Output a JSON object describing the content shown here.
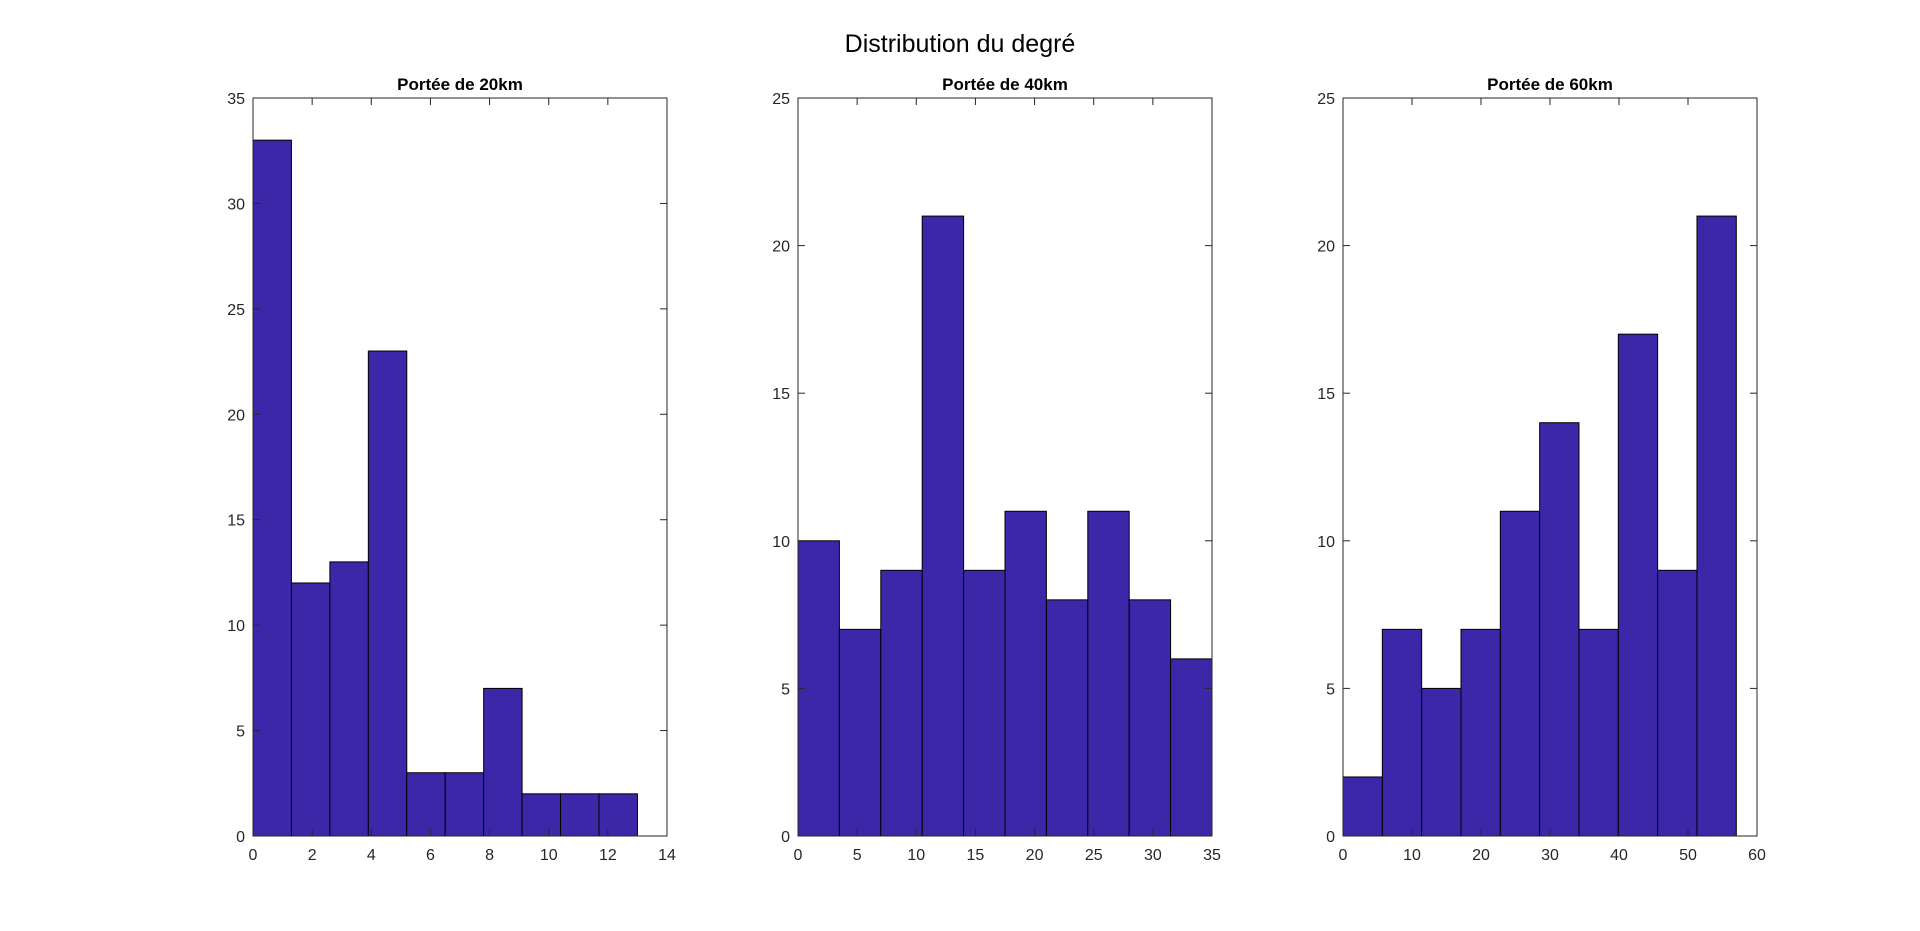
{
  "figure": {
    "title": "Distribution du degré"
  },
  "chart_data": [
    {
      "type": "bar",
      "title": "Portée de 20km",
      "xlabel": "",
      "ylabel": "",
      "bin_edges": [
        0,
        1.3,
        2.6,
        3.9,
        5.2,
        6.5,
        7.8,
        9.1,
        10.4,
        11.7,
        13.0
      ],
      "values": [
        33,
        12,
        13,
        23,
        3,
        3,
        7,
        2,
        2,
        2
      ],
      "xlim": [
        0,
        14
      ],
      "ylim": [
        0,
        35
      ],
      "xticks": [
        0,
        2,
        4,
        6,
        8,
        10,
        12,
        14
      ],
      "yticks": [
        0,
        5,
        10,
        15,
        20,
        25,
        30,
        35
      ],
      "bar_color": "#3c27a9",
      "edge_color": "#000000"
    },
    {
      "type": "bar",
      "title": "Portée de 40km",
      "xlabel": "",
      "ylabel": "",
      "bin_edges": [
        0,
        3.5,
        7.0,
        10.5,
        14.0,
        17.5,
        21.0,
        24.5,
        28.0,
        31.5,
        35.0
      ],
      "values": [
        10,
        7,
        9,
        21,
        9,
        11,
        8,
        11,
        8,
        6
      ],
      "xlim": [
        0,
        35
      ],
      "ylim": [
        0,
        25
      ],
      "xticks": [
        0,
        5,
        10,
        15,
        20,
        25,
        30,
        35
      ],
      "yticks": [
        0,
        5,
        10,
        15,
        20,
        25
      ],
      "bar_color": "#3c27a9",
      "edge_color": "#000000"
    },
    {
      "type": "bar",
      "title": "Portée de 60km",
      "xlabel": "",
      "ylabel": "",
      "bin_edges": [
        0,
        5.7,
        11.4,
        17.1,
        22.8,
        28.5,
        34.2,
        39.9,
        45.6,
        51.3,
        57.0
      ],
      "values": [
        2,
        7,
        5,
        7,
        11,
        14,
        7,
        17,
        9,
        21
      ],
      "xlim": [
        0,
        60
      ],
      "ylim": [
        0,
        25
      ],
      "xticks": [
        0,
        10,
        20,
        30,
        40,
        50,
        60
      ],
      "yticks": [
        0,
        5,
        10,
        15,
        20,
        25
      ],
      "bar_color": "#3c27a9",
      "edge_color": "#000000"
    }
  ]
}
